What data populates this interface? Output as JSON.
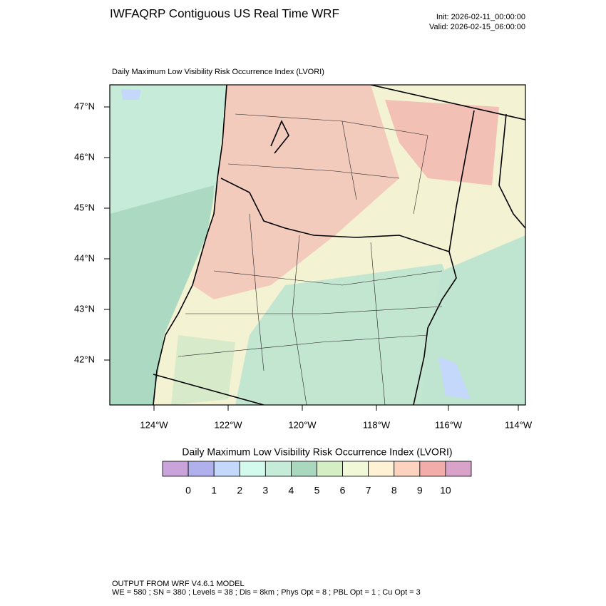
{
  "header": {
    "title": "IWFAQRP Contiguous US Real Time WRF",
    "init": "Init: 2026-02-11_00:00:00",
    "valid": "Valid: 2026-02-15_06:00:00"
  },
  "map": {
    "subtitle": "Daily Maximum Low Visibility Risk Occurrence Index   (LVORI)",
    "lat_labels": [
      "47°N",
      "46°N",
      "45°N",
      "44°N",
      "43°N",
      "42°N"
    ],
    "lon_labels": [
      "124°W",
      "122°W",
      "120°W",
      "118°W",
      "116°W",
      "114°W"
    ]
  },
  "colorbar": {
    "title": "Daily Maximum Low Visibility Risk Occurrence Index  (LVORI)",
    "colors": [
      "#c9a3d9",
      "#b0b0ec",
      "#c4d8fb",
      "#d2fbee",
      "#c4ecd8",
      "#a9d8bf",
      "#d5efc4",
      "#f1f8d8",
      "#fff2d4",
      "#fdd3c0",
      "#f2adab",
      "#d9a3c9"
    ],
    "ticks": [
      0,
      1,
      2,
      3,
      4,
      5,
      6,
      7,
      8,
      9,
      10
    ]
  },
  "footer": {
    "line1": "OUTPUT FROM WRF V4.6.1 MODEL",
    "line2": "WE = 580 ; SN = 380 ; Levels = 38 ; Dis = 8km ; Phys Opt = 8 ; PBL Opt = 1 ; Cu Opt = 3"
  }
}
